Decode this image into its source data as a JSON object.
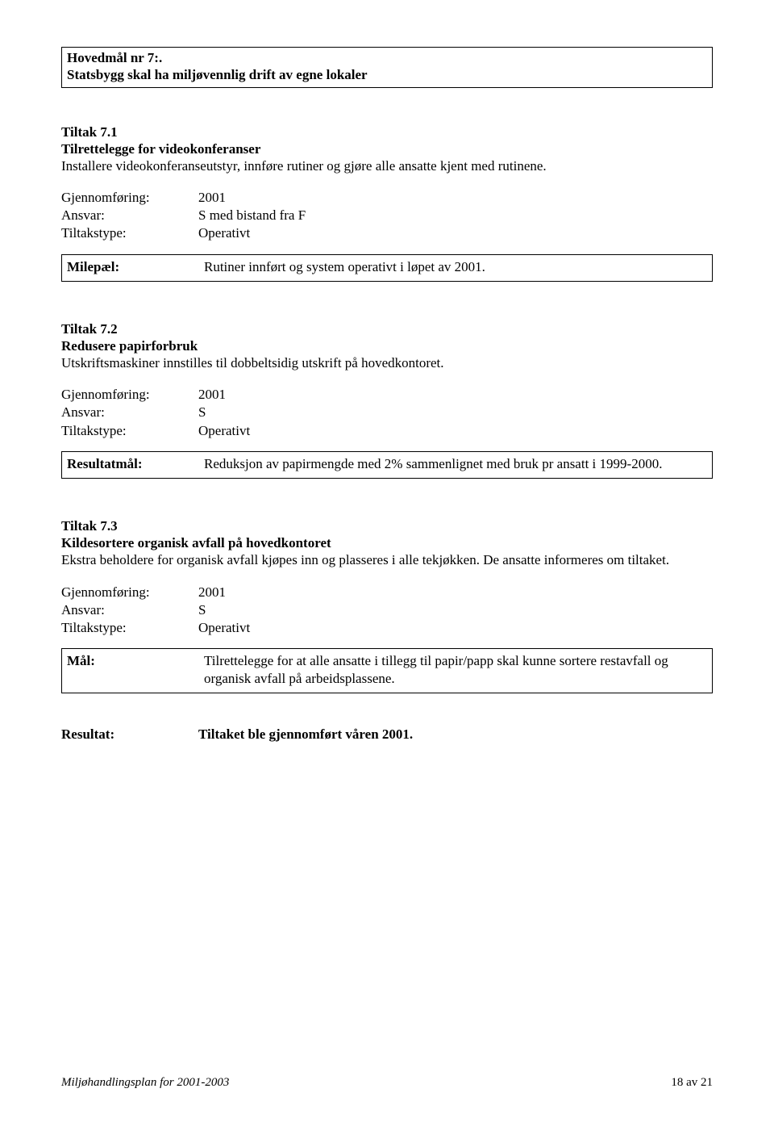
{
  "header": {
    "line1": "Hovedmål nr 7:.",
    "line2": "Statsbygg skal ha miljøvennlig drift av egne lokaler"
  },
  "sections": [
    {
      "title_line1": "Tiltak 7.1",
      "title_line2": "Tilrettelegge for videokonferanser",
      "body": "Installere videokonferanseutstyr, innføre rutiner og gjøre alle ansatte kjent med rutinene.",
      "kv": [
        {
          "label": "Gjennomføring:",
          "value": "2001"
        },
        {
          "label": "Ansvar:",
          "value": "S med bistand fra F"
        },
        {
          "label": "Tiltakstype:",
          "value": "Operativt"
        }
      ],
      "result_label": "Milepæl:",
      "result_value": "Rutiner innført og system operativt i løpet av 2001."
    },
    {
      "title_line1": "Tiltak 7.2",
      "title_line2": "Redusere papirforbruk",
      "body": "Utskriftsmaskiner innstilles til dobbeltsidig utskrift på hovedkontoret.",
      "kv": [
        {
          "label": "Gjennomføring:",
          "value": "2001"
        },
        {
          "label": "Ansvar:",
          "value": "S"
        },
        {
          "label": "Tiltakstype:",
          "value": "Operativt"
        }
      ],
      "result_label": "Resultatmål:",
      "result_value": "Reduksjon av papirmengde med 2% sammenlignet med bruk pr ansatt i 1999-2000."
    },
    {
      "title_line1": "Tiltak 7.3",
      "title_line2": "Kildesortere organisk avfall på hovedkontoret",
      "body": "Ekstra beholdere for organisk avfall kjøpes inn og plasseres i alle tekjøkken. De ansatte informeres om tiltaket.",
      "kv": [
        {
          "label": "Gjennomføring:",
          "value": "2001"
        },
        {
          "label": "Ansvar:",
          "value": "S"
        },
        {
          "label": "Tiltakstype:",
          "value": "Operativt"
        }
      ],
      "result_label": "Mål:",
      "result_value": "Tilrettelegge for at alle ansatte i tillegg til papir/papp skal kunne sortere restavfall og organisk avfall på arbeidsplassene."
    }
  ],
  "standalone_result": {
    "label": "Resultat:",
    "value": "Tiltaket ble gjennomført våren 2001."
  },
  "footer": {
    "left": "Miljøhandlingsplan for 2001-2003",
    "right": "18 av 21"
  },
  "colors": {
    "background": "#ffffff",
    "text": "#000000",
    "border": "#000000"
  },
  "typography": {
    "font_family": "Times New Roman",
    "body_fontsize_pt": 12,
    "footer_fontsize_pt": 11
  }
}
